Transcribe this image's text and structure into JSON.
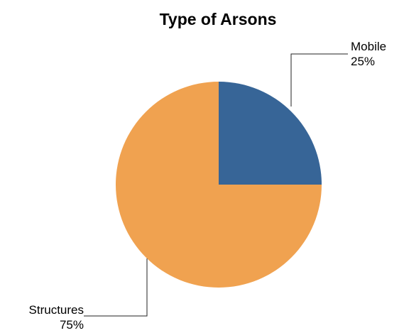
{
  "chart_data": {
    "type": "pie",
    "title": "Type of Arsons",
    "categories": [
      "Mobile",
      "Structures"
    ],
    "values": [
      25,
      75
    ],
    "value_labels": [
      "25%",
      "75%"
    ],
    "colors": [
      "#376597",
      "#F0A250"
    ],
    "start": "12 o'clock",
    "direction": "clockwise",
    "legend": "none",
    "grid": false
  }
}
